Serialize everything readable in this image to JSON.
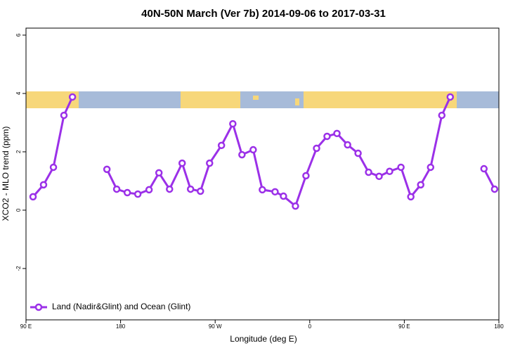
{
  "chart_data": {
    "type": "line",
    "title": "40N-50N March (Ver 7b)   2014-09-06 to 2017-03-31",
    "x_label": "Longitude (deg E)",
    "y_label": "XCO2 - MLO trend (ppm)",
    "x": [
      96.7,
      106.7,
      116.1,
      126.1,
      134.2,
      150,
      167,
      176.3,
      186.4,
      196.4,
      207.1,
      216.5,
      226.6,
      238.6,
      246.6,
      256,
      264.7,
      276,
      286.8,
      295.5,
      306.2,
      314.9,
      327,
      335,
      346.4,
      356.4,
      366.5,
      376.5,
      385.9,
      396,
      406,
      416,
      426,
      436,
      446.8,
      456.2,
      465.6,
      475,
      485.7,
      493.7,
      510,
      525.8,
      535.9
    ],
    "series": [
      {
        "name": "Land (Nadir&Glint) and Ocean (Glint)",
        "color": "#9b30e8",
        "values": [
          0.46,
          0.87,
          1.47,
          3.25,
          3.88,
          null,
          1.4,
          0.72,
          0.6,
          0.55,
          0.7,
          1.28,
          0.72,
          1.61,
          0.72,
          0.65,
          1.61,
          2.22,
          2.96,
          1.9,
          2.07,
          0.7,
          0.63,
          0.48,
          0.14,
          1.18,
          2.12,
          2.53,
          2.63,
          2.24,
          1.95,
          1.3,
          1.16,
          1.33,
          1.47,
          0.46,
          0.87,
          1.47,
          3.25,
          3.88,
          null,
          1.42,
          0.72
        ]
      }
    ],
    "xlim": [
      90,
      540
    ],
    "xticks": [
      {
        "value": 90,
        "label": "90 E"
      },
      180,
      {
        "value": 270,
        "label": "90 W"
      },
      {
        "value": 360,
        "label": "0"
      },
      {
        "value": 450,
        "label": "90 E"
      },
      {
        "value": 540,
        "label": "180"
      }
    ],
    "ylim": [
      -3.76,
      6.24
    ],
    "yticks": [
      -2,
      0,
      2,
      4,
      6
    ],
    "legend": "bottom-left"
  }
}
